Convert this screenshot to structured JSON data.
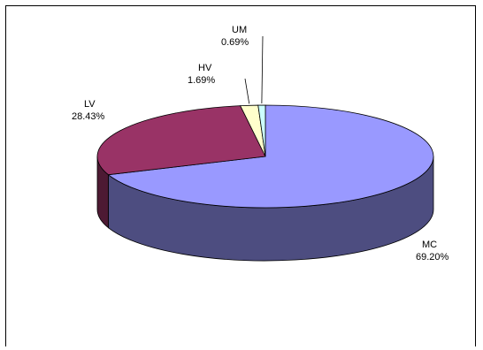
{
  "chart_data": {
    "type": "pie",
    "style": "3d",
    "title": "",
    "legend": "none",
    "categories": [
      "MC",
      "LV",
      "HV",
      "UM"
    ],
    "values": [
      69.2,
      28.43,
      1.69,
      0.69
    ],
    "labels": [
      "69.20%",
      "28.43%",
      "1.69%",
      "0.69%"
    ],
    "colors": {
      "MC": "#9999ff",
      "LV": "#993366",
      "HV": "#ffffcc",
      "UM": "#ccffff"
    }
  }
}
